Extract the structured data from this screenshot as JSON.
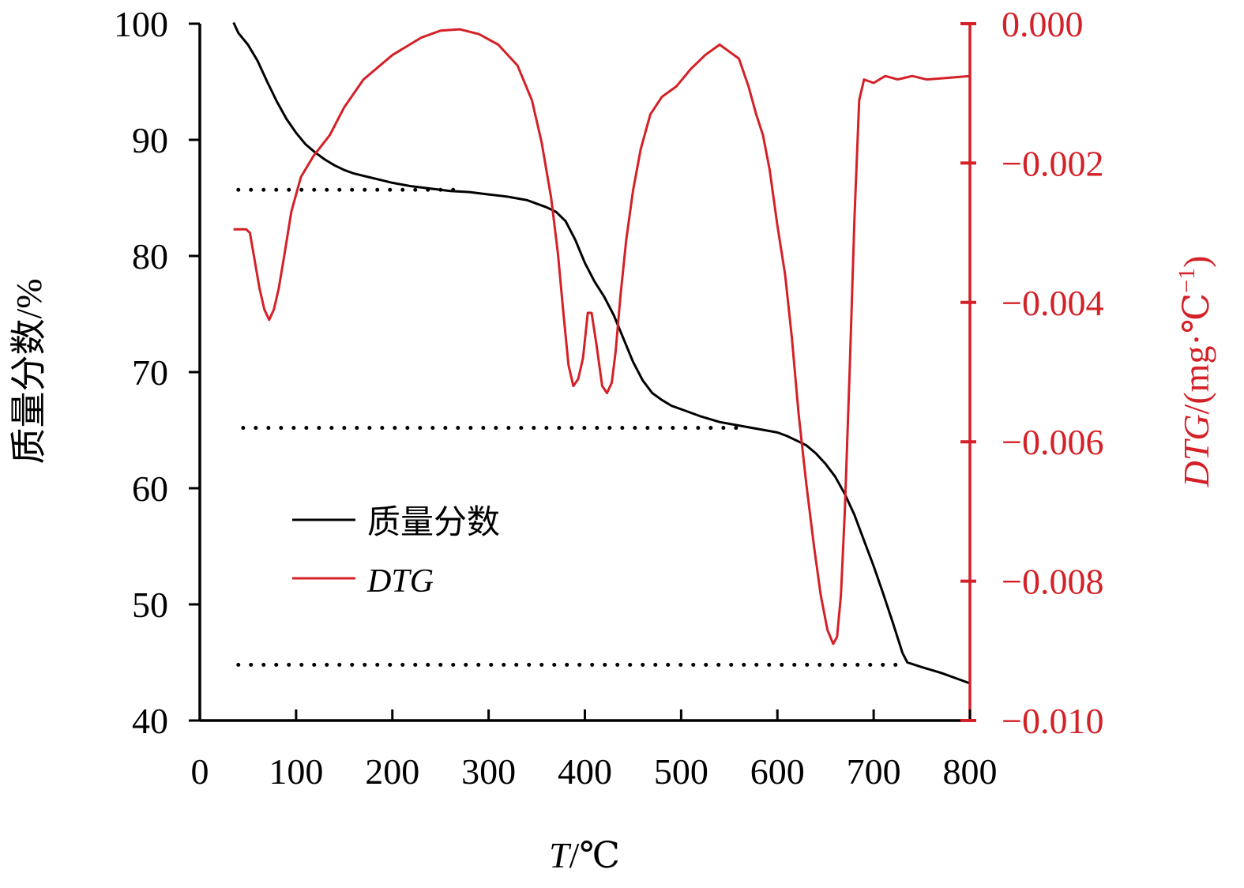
{
  "chart_data": {
    "type": "line",
    "x_axis": {
      "label_italic": "T",
      "label_rest": "/℃",
      "range": [
        0,
        800
      ],
      "ticks": [
        0,
        100,
        200,
        300,
        400,
        500,
        600,
        700,
        800
      ],
      "tick_labels": [
        "0",
        "100",
        "200",
        "300",
        "400",
        "500",
        "600",
        "700",
        "800"
      ]
    },
    "y_left": {
      "label": "质量分数/%",
      "range": [
        40,
        100
      ],
      "ticks": [
        40,
        50,
        60,
        70,
        80,
        90,
        100
      ],
      "tick_labels": [
        "40",
        "50",
        "60",
        "70",
        "80",
        "90",
        "100"
      ],
      "color": "#000000"
    },
    "y_right": {
      "label_italic": "DTG",
      "label_rest": "/(mg·℃",
      "label_sup": "−1",
      "label_close": ")",
      "range": [
        -0.01,
        0.0
      ],
      "ticks": [
        0.0,
        -0.002,
        -0.004,
        -0.006,
        -0.008,
        -0.01
      ],
      "tick_labels": [
        "0.000",
        "−0.002",
        "−0.004",
        "−0.006",
        "−0.008",
        "−0.010"
      ],
      "color": "#d42027"
    },
    "series": [
      {
        "name": "质量分数",
        "axis": "left",
        "color": "#000000",
        "italic": false,
        "points": [
          [
            35,
            100.1
          ],
          [
            40,
            99.2
          ],
          [
            50,
            98.2
          ],
          [
            60,
            96.8
          ],
          [
            70,
            95.0
          ],
          [
            80,
            93.3
          ],
          [
            90,
            91.8
          ],
          [
            100,
            90.6
          ],
          [
            110,
            89.6
          ],
          [
            120,
            88.9
          ],
          [
            130,
            88.3
          ],
          [
            140,
            87.8
          ],
          [
            150,
            87.4
          ],
          [
            160,
            87.1
          ],
          [
            170,
            86.9
          ],
          [
            180,
            86.7
          ],
          [
            190,
            86.5
          ],
          [
            200,
            86.3
          ],
          [
            220,
            86.0
          ],
          [
            240,
            85.8
          ],
          [
            260,
            85.6
          ],
          [
            280,
            85.5
          ],
          [
            300,
            85.3
          ],
          [
            320,
            85.1
          ],
          [
            340,
            84.8
          ],
          [
            360,
            84.2
          ],
          [
            370,
            83.8
          ],
          [
            380,
            83.0
          ],
          [
            390,
            81.4
          ],
          [
            400,
            79.4
          ],
          [
            410,
            77.8
          ],
          [
            420,
            76.5
          ],
          [
            430,
            74.9
          ],
          [
            440,
            72.9
          ],
          [
            450,
            70.9
          ],
          [
            460,
            69.3
          ],
          [
            470,
            68.2
          ],
          [
            480,
            67.6
          ],
          [
            490,
            67.1
          ],
          [
            500,
            66.8
          ],
          [
            520,
            66.2
          ],
          [
            540,
            65.7
          ],
          [
            560,
            65.4
          ],
          [
            580,
            65.1
          ],
          [
            600,
            64.8
          ],
          [
            610,
            64.5
          ],
          [
            620,
            64.1
          ],
          [
            630,
            63.7
          ],
          [
            640,
            63.0
          ],
          [
            650,
            62.1
          ],
          [
            660,
            61.0
          ],
          [
            670,
            59.5
          ],
          [
            680,
            57.7
          ],
          [
            690,
            55.5
          ],
          [
            700,
            53.3
          ],
          [
            710,
            50.9
          ],
          [
            720,
            48.4
          ],
          [
            730,
            45.8
          ],
          [
            735,
            45.0
          ],
          [
            750,
            44.6
          ],
          [
            770,
            44.1
          ],
          [
            790,
            43.5
          ],
          [
            800,
            43.2
          ]
        ]
      },
      {
        "name": "DTG",
        "axis": "right",
        "color": "#d42027",
        "italic": true,
        "points": [
          [
            35,
            -0.00295
          ],
          [
            48,
            -0.00295
          ],
          [
            52,
            -0.003
          ],
          [
            57,
            -0.0034
          ],
          [
            62,
            -0.0038
          ],
          [
            67,
            -0.0041
          ],
          [
            72,
            -0.00425
          ],
          [
            77,
            -0.0041
          ],
          [
            82,
            -0.0038
          ],
          [
            88,
            -0.0033
          ],
          [
            95,
            -0.0027
          ],
          [
            105,
            -0.0022
          ],
          [
            118,
            -0.0019
          ],
          [
            135,
            -0.0016
          ],
          [
            150,
            -0.0012
          ],
          [
            170,
            -0.0008
          ],
          [
            200,
            -0.00045
          ],
          [
            230,
            -0.0002
          ],
          [
            250,
            -0.0001
          ],
          [
            270,
            -8e-05
          ],
          [
            290,
            -0.00015
          ],
          [
            310,
            -0.0003
          ],
          [
            330,
            -0.0006
          ],
          [
            345,
            -0.0011
          ],
          [
            355,
            -0.0017
          ],
          [
            365,
            -0.0025
          ],
          [
            372,
            -0.0033
          ],
          [
            378,
            -0.0042
          ],
          [
            383,
            -0.0049
          ],
          [
            388,
            -0.0052
          ],
          [
            393,
            -0.0051
          ],
          [
            398,
            -0.0048
          ],
          [
            403,
            -0.00415
          ],
          [
            407,
            -0.00415
          ],
          [
            412,
            -0.0046
          ],
          [
            418,
            -0.0052
          ],
          [
            423,
            -0.0053
          ],
          [
            428,
            -0.00515
          ],
          [
            432,
            -0.0047
          ],
          [
            437,
            -0.0039
          ],
          [
            443,
            -0.0031
          ],
          [
            450,
            -0.0024
          ],
          [
            458,
            -0.0018
          ],
          [
            468,
            -0.0013
          ],
          [
            480,
            -0.00105
          ],
          [
            495,
            -0.0009
          ],
          [
            510,
            -0.00065
          ],
          [
            525,
            -0.00045
          ],
          [
            540,
            -0.0003
          ],
          [
            550,
            -0.0004
          ],
          [
            560,
            -0.0005
          ],
          [
            570,
            -0.0009
          ],
          [
            578,
            -0.0013
          ],
          [
            585,
            -0.0016
          ],
          [
            592,
            -0.0021
          ],
          [
            600,
            -0.0029
          ],
          [
            608,
            -0.0036
          ],
          [
            615,
            -0.0045
          ],
          [
            622,
            -0.0056
          ],
          [
            630,
            -0.0066
          ],
          [
            638,
            -0.0075
          ],
          [
            645,
            -0.0082
          ],
          [
            652,
            -0.0087
          ],
          [
            658,
            -0.0089
          ],
          [
            662,
            -0.0088
          ],
          [
            666,
            -0.0082
          ],
          [
            670,
            -0.007
          ],
          [
            675,
            -0.005
          ],
          [
            680,
            -0.0028
          ],
          [
            685,
            -0.0011
          ],
          [
            690,
            -0.0008
          ],
          [
            700,
            -0.00085
          ],
          [
            712,
            -0.00075
          ],
          [
            725,
            -0.0008
          ],
          [
            740,
            -0.00075
          ],
          [
            755,
            -0.0008
          ],
          [
            775,
            -0.00078
          ],
          [
            800,
            -0.00075
          ]
        ]
      }
    ],
    "reference_lines": [
      {
        "axis": "left",
        "y": 85.7,
        "x_start": 40,
        "x_end": 270
      },
      {
        "axis": "left",
        "y": 65.2,
        "x_start": 45,
        "x_end": 570
      },
      {
        "axis": "left",
        "y": 44.8,
        "x_start": 40,
        "x_end": 730
      }
    ],
    "legend": {
      "position": "inside-lower-left",
      "entries": [
        {
          "label": "质量分数",
          "color": "#000000",
          "italic": false
        },
        {
          "label": "DTG",
          "color": "#d42027",
          "italic": true
        }
      ]
    },
    "grid": false
  }
}
